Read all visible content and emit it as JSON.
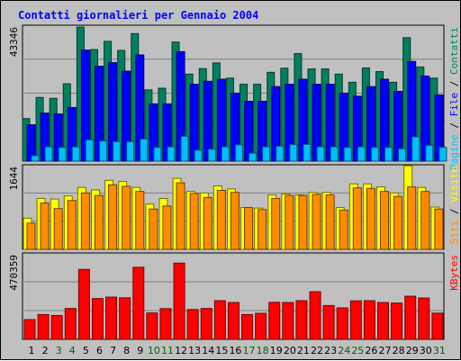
{
  "colors": {
    "background": "#c0c0c0",
    "panel_border": "#000000",
    "gridline": "#808080",
    "title": "#0000ff",
    "day_weekday": "#000000",
    "day_weekend": "#006600",
    "pages": "#00bfff",
    "files": "#0000ff",
    "hits": "#008060",
    "sites": "#ff8c00",
    "visits": "#ffff00",
    "kbytes": "#ff0000"
  },
  "chart_data": [
    {
      "type": "bar",
      "title": "Contatti giornalieri per Gennaio 2004",
      "panel": "top",
      "ymax_label": "43346",
      "ylim": [
        0,
        43346
      ],
      "right_label": [
        {
          "text": "Pagine",
          "color": "#00bfff"
        },
        {
          "text": " / ",
          "color": "#000000"
        },
        {
          "text": "File",
          "color": "#0000ff"
        },
        {
          "text": " / ",
          "color": "#000000"
        },
        {
          "text": "Contatti",
          "color": "#008060"
        }
      ],
      "categories": [
        "1",
        "2",
        "3",
        "4",
        "5",
        "6",
        "7",
        "8",
        "9",
        "10",
        "11",
        "12",
        "13",
        "14",
        "15",
        "16",
        "17",
        "18",
        "19",
        "20",
        "21",
        "22",
        "23",
        "24",
        "25",
        "26",
        "27",
        "28",
        "29",
        "30",
        "31"
      ],
      "series": [
        {
          "name": "Contatti",
          "values": [
            13750,
            20580,
            20290,
            25000,
            43320,
            36050,
            38710,
            35770,
            41220,
            23030,
            23570,
            38470,
            28130,
            29900,
            31740,
            26830,
            24850,
            24850,
            28700,
            30030,
            34740,
            29790,
            29790,
            28130,
            25490,
            30110,
            28930,
            25490,
            39900,
            30450,
            26830
          ]
        },
        {
          "name": "File",
          "values": [
            11750,
            15530,
            15250,
            17340,
            35880,
            30660,
            31830,
            29090,
            34330,
            18500,
            18500,
            35380,
            24850,
            25810,
            26470,
            21980,
            19350,
            19350,
            24090,
            24850,
            26470,
            24850,
            24850,
            21980,
            20980,
            24090,
            26470,
            22540,
            32200,
            27490,
            21390
          ]
        },
        {
          "name": "Pagine",
          "values": [
            1750,
            4620,
            4440,
            4620,
            6900,
            6530,
            6310,
            6310,
            7160,
            4440,
            4620,
            8030,
            3540,
            3840,
            4620,
            5260,
            2560,
            4620,
            4840,
            5350,
            5410,
            4620,
            4620,
            4440,
            4620,
            4440,
            4440,
            4010,
            7880,
            5080,
            4440
          ]
        }
      ]
    },
    {
      "type": "bar",
      "panel": "middle",
      "ymax_label": "1644",
      "ylim": [
        0,
        1644
      ],
      "right_label": [
        {
          "text": "Siti",
          "color": "#ff8c00"
        },
        {
          "text": " / ",
          "color": "#000000"
        },
        {
          "text": "Visite",
          "color": "#ffff00"
        }
      ],
      "categories": [
        "1",
        "2",
        "3",
        "4",
        "5",
        "6",
        "7",
        "8",
        "9",
        "10",
        "11",
        "12",
        "13",
        "14",
        "15",
        "16",
        "17",
        "18",
        "19",
        "20",
        "21",
        "22",
        "23",
        "24",
        "25",
        "26",
        "27",
        "28",
        "29",
        "30",
        "31"
      ],
      "series": [
        {
          "name": "Visite",
          "values": [
            620,
            1010,
            1000,
            1060,
            1230,
            1180,
            1370,
            1350,
            1230,
            900,
            1010,
            1410,
            1150,
            1120,
            1260,
            1200,
            830,
            820,
            1080,
            1100,
            1080,
            1130,
            1130,
            830,
            1300,
            1300,
            1240,
            1120,
            1660,
            1230,
            840
          ]
        },
        {
          "name": "Siti",
          "values": [
            520,
            920,
            810,
            970,
            1120,
            1070,
            1280,
            1250,
            1150,
            800,
            860,
            1320,
            1110,
            1030,
            1170,
            1130,
            830,
            790,
            1010,
            1070,
            1070,
            1090,
            1080,
            780,
            1220,
            1210,
            1150,
            1050,
            1240,
            1150,
            800
          ]
        }
      ]
    },
    {
      "type": "bar",
      "panel": "bottom",
      "ymax_label": "470359",
      "ylim": [
        0,
        470359
      ],
      "right_label": [
        {
          "text": "KBytes",
          "color": "#ff0000"
        }
      ],
      "categories": [
        "1",
        "2",
        "3",
        "4",
        "5",
        "6",
        "7",
        "8",
        "9",
        "10",
        "11",
        "12",
        "13",
        "14",
        "15",
        "16",
        "17",
        "18",
        "19",
        "20",
        "21",
        "22",
        "23",
        "24",
        "25",
        "26",
        "27",
        "28",
        "29",
        "30",
        "31"
      ],
      "series": [
        {
          "name": "KBytes",
          "values": [
            110000,
            138000,
            133000,
            172000,
            389000,
            227000,
            235000,
            231000,
            401000,
            147000,
            171000,
            424000,
            166000,
            172000,
            215000,
            205000,
            138000,
            145000,
            206000,
            205000,
            215000,
            265000,
            188000,
            175000,
            214000,
            215000,
            205000,
            202000,
            240000,
            230000,
            146000
          ]
        }
      ]
    }
  ],
  "x_axis": {
    "days": [
      "1",
      "2",
      "3",
      "4",
      "5",
      "6",
      "7",
      "8",
      "9",
      "10",
      "11",
      "12",
      "13",
      "14",
      "15",
      "16",
      "17",
      "18",
      "19",
      "20",
      "21",
      "22",
      "23",
      "24",
      "25",
      "26",
      "27",
      "28",
      "29",
      "30",
      "31"
    ],
    "weekend": [
      3,
      4,
      10,
      11,
      17,
      18,
      24,
      25,
      31
    ]
  }
}
